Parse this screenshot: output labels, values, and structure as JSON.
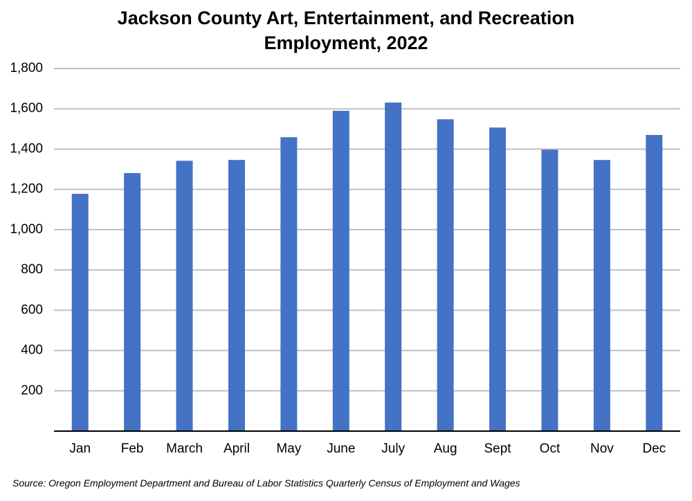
{
  "chart_data": {
    "type": "bar",
    "title": "Jackson County Art, Entertainment, and Recreation Employment, 2022",
    "categories": [
      "Jan",
      "Feb",
      "March",
      "April",
      "May",
      "June",
      "July",
      "Aug",
      "Sept",
      "Oct",
      "Nov",
      "Dec"
    ],
    "values": [
      1178,
      1281,
      1342,
      1346,
      1459,
      1590,
      1631,
      1548,
      1507,
      1397,
      1346,
      1470
    ],
    "color": "#4472c4",
    "ylim": [
      0,
      1800
    ],
    "yticks": [
      200,
      400,
      600,
      800,
      {
        "value": 1000,
        "label": "1,000"
      },
      {
        "value": 1200,
        "label": "1,200"
      },
      {
        "value": 1400,
        "label": "1,400"
      },
      {
        "value": 1600,
        "label": "1,600"
      },
      {
        "value": 1800,
        "label": "1,800"
      }
    ],
    "grid": true,
    "source": "Source: Oregon Employment Department and Bureau of Labor Statistics Quarterly Census of Employment and Wages"
  }
}
